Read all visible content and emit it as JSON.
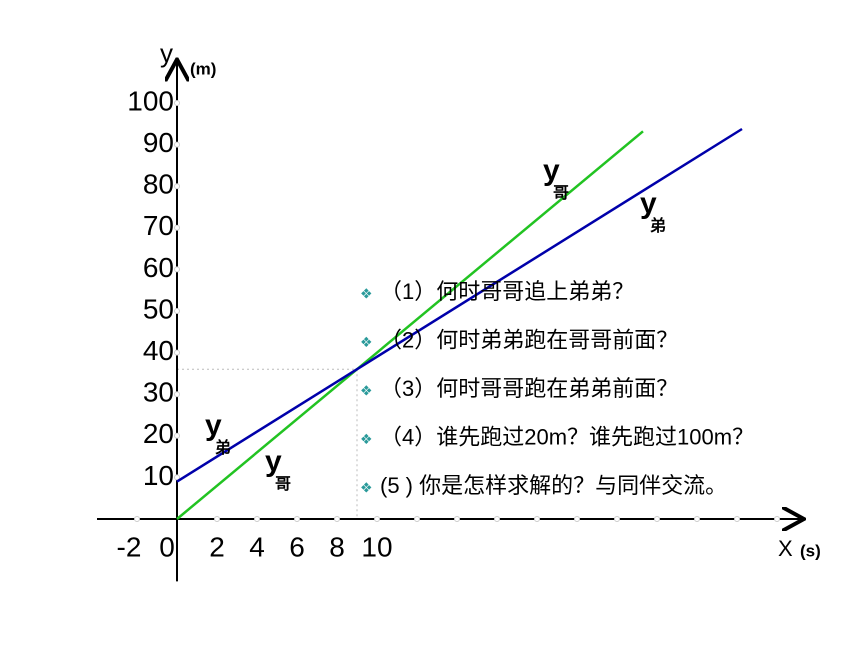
{
  "chart_data": {
    "type": "line",
    "x_label": "X",
    "x_unit": "(s)",
    "y_label": "y",
    "y_unit": "(m)",
    "xlim": [
      -4,
      31
    ],
    "ylim": [
      -15,
      110
    ],
    "xticks": [
      -2,
      0,
      2,
      4,
      6,
      8,
      10
    ],
    "xticks_unlabeled": [
      12,
      14,
      16,
      18,
      20,
      22,
      24,
      26,
      28,
      30
    ],
    "yticks": [
      10,
      20,
      30,
      40,
      50,
      60,
      70,
      80,
      90,
      100
    ],
    "guides": {
      "x": 9,
      "y": 36
    },
    "series": [
      {
        "name": "哥",
        "color": "#22c322",
        "x": [
          0,
          23.3
        ],
        "values": [
          0,
          93.2
        ]
      },
      {
        "name": "弟",
        "color": "#0000aa",
        "x": [
          0,
          28.25
        ],
        "values": [
          9,
          93.75
        ]
      }
    ],
    "line_labels": [
      {
        "text": "y",
        "sub": "哥"
      },
      {
        "text": "y",
        "sub": "弟"
      },
      {
        "text": "y",
        "sub": "弟"
      },
      {
        "text": "y",
        "sub": "哥"
      }
    ]
  },
  "questions": [
    "（1）何时哥哥追上弟弟？",
    "（2）何时弟弟跑在哥哥前面？",
    "（3）何时哥哥跑在弟弟前面？",
    "（4）谁先跑过20m？谁先跑过100m？",
    "(5 ) 你是怎样求解的？与同伴交流。"
  ]
}
